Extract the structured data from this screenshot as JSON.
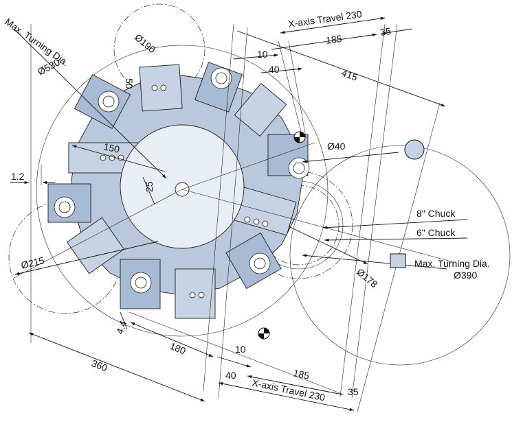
{
  "labels": {
    "max_turning_dia_top": "Max. Turning Dia.",
    "d530": "Ø530",
    "d190": "Ø190",
    "x_travel_top": "X-axis Travel 230",
    "d185_top": "185",
    "d35_top": "35",
    "d10_top": "10",
    "d40_top": "40",
    "d415": "415",
    "d50": "50",
    "d40_circle": "Ø40",
    "d150": "150",
    "d1_2": "1.2",
    "d25": "25",
    "chuck8": "8\" Chuck",
    "chuck6": "6\" Chuck",
    "max_turning_dia_right": "Max. Turning Dia.",
    "d390": "Ø390",
    "d178": "Ø178",
    "d215": "Ø215",
    "d4_4": "4.4",
    "d180": "180",
    "d360": "360",
    "d10_bot": "10",
    "d40_bot": "40",
    "d185_bot": "185",
    "d35_bot": "35",
    "x_travel_bot": "X-axis Travel 230"
  },
  "colors": {
    "turret_blue": "#b9c8dc",
    "tool_blue": "#8fa6c4",
    "line": "#111111"
  }
}
